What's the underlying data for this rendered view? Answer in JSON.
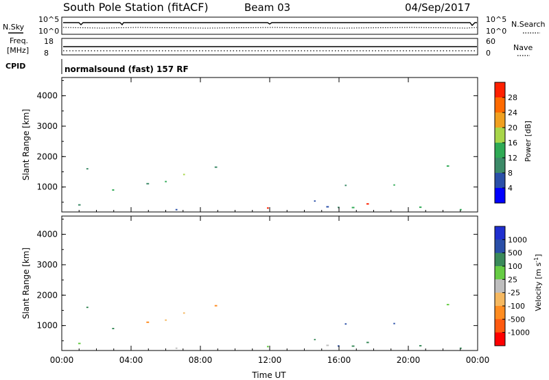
{
  "header": {
    "station": "South Pole Station (fitACF)",
    "beam": "Beam 03",
    "date": "04/Sep/2017"
  },
  "summary_panels": {
    "nsky_label": "N.Sky",
    "nsearch_label": "N.Search",
    "freq_label_line1": "Freq.",
    "freq_label_line2": "[MHz]",
    "nave_label": "Nave",
    "cpid_label": "CPID",
    "cpid_value": "normalsound (fast) 157 RF",
    "noise_left_ticks": [
      "10^5",
      "10^0"
    ],
    "noise_right_ticks": [
      "10^5",
      "10^0"
    ],
    "freq_ticks": [
      "18",
      "8"
    ],
    "nave_ticks": [
      "60",
      "0"
    ]
  },
  "colors": {
    "power_scale": [
      "#0000ff",
      "#2a4fa8",
      "#3c8a68",
      "#2faa55",
      "#a8d64a",
      "#f0a020",
      "#ff6a00",
      "#ff2000"
    ],
    "velocity_scale": [
      "#ff0000",
      "#ff5a10",
      "#ff8c20",
      "#f5b860",
      "#bebebe",
      "#66cc44",
      "#3a8a5a",
      "#2a4fa8",
      "#1f2fcf"
    ]
  },
  "chart_data": [
    {
      "type": "heatmap",
      "title": "Power",
      "ylabel": "Slant Range [km]",
      "xlabel": "",
      "ylim": [
        180,
        4600
      ],
      "yticks": [
        "1000",
        "2000",
        "3000",
        "4000"
      ],
      "colorbar": {
        "label": "Power [dB]",
        "range": [
          0,
          32
        ],
        "ticks": [
          "4",
          "8",
          "12",
          "16",
          "20",
          "24",
          "28"
        ]
      }
    },
    {
      "type": "heatmap",
      "title": "Velocity",
      "ylabel": "Slant Range [km]",
      "xlabel": "Time UT",
      "ylim": [
        180,
        4600
      ],
      "yticks": [
        "1000",
        "2000",
        "3000",
        "4000"
      ],
      "xticks": [
        "00:00",
        "04:00",
        "08:00",
        "12:00",
        "16:00",
        "20:00",
        "00:00"
      ],
      "colorbar": {
        "label": "Velocity [m s",
        "label_sup": "-1",
        "ticks": [
          "1000",
          "500",
          "100",
          "25",
          "-25",
          "-100",
          "-500",
          "-1000"
        ]
      }
    }
  ]
}
